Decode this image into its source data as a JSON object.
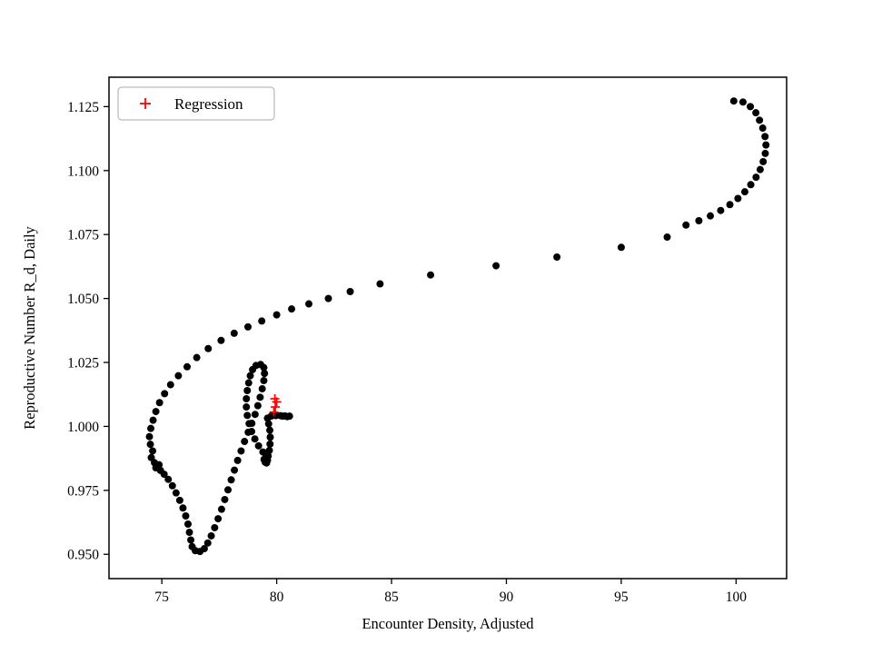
{
  "figure": {
    "background": "#ffffff"
  },
  "chart_data": {
    "type": "scatter",
    "title": "",
    "xlabel": "Encounter Density, Adjusted",
    "ylabel": "Reproductive Number R_d, Daily",
    "xlim": [
      72.7,
      102.2
    ],
    "ylim": [
      0.9405,
      1.1365
    ],
    "grid": false,
    "xticks": {
      "values": [
        75,
        80,
        85,
        90,
        95,
        100
      ],
      "labels": [
        "75",
        "80",
        "85",
        "90",
        "95",
        "100"
      ]
    },
    "yticks": {
      "values": [
        0.95,
        0.975,
        1.0,
        1.025,
        1.05,
        1.075,
        1.1,
        1.125
      ],
      "labels": [
        "0.950",
        "0.975",
        "1.000",
        "1.025",
        "1.050",
        "1.075",
        "1.100",
        "1.125"
      ]
    },
    "legend": {
      "position": "upper left",
      "entries": [
        {
          "label": "Regression",
          "marker": "plus",
          "color": "#ff0000"
        }
      ]
    },
    "series": [
      {
        "name": "trajectory",
        "marker": "circle",
        "color": "#000000",
        "size": 4,
        "points": [
          [
            99.9,
            1.1272
          ],
          [
            100.3,
            1.1268
          ],
          [
            100.62,
            1.125
          ],
          [
            100.86,
            1.1226
          ],
          [
            101.02,
            1.1197
          ],
          [
            101.16,
            1.1166
          ],
          [
            101.26,
            1.1133
          ],
          [
            101.3,
            1.11
          ],
          [
            101.27,
            1.1067
          ],
          [
            101.18,
            1.1035
          ],
          [
            101.05,
            1.1004
          ],
          [
            100.87,
            1.0974
          ],
          [
            100.64,
            1.0945
          ],
          [
            100.38,
            1.0917
          ],
          [
            100.08,
            1.0891
          ],
          [
            99.73,
            1.0867
          ],
          [
            99.33,
            1.0844
          ],
          [
            98.88,
            1.0823
          ],
          [
            98.38,
            1.0804
          ],
          [
            97.82,
            1.0787
          ],
          [
            97.0,
            1.074
          ],
          [
            95.0,
            1.07
          ],
          [
            92.2,
            1.0662
          ],
          [
            89.55,
            1.0628
          ],
          [
            86.7,
            1.0592
          ],
          [
            84.5,
            1.0557
          ],
          [
            83.2,
            1.0527
          ],
          [
            82.25,
            1.05
          ],
          [
            81.4,
            1.0479
          ],
          [
            80.65,
            1.0459
          ],
          [
            80.0,
            1.0436
          ],
          [
            79.35,
            1.0412
          ],
          [
            78.75,
            1.0389
          ],
          [
            78.15,
            1.0364
          ],
          [
            77.58,
            1.0336
          ],
          [
            77.02,
            1.0304
          ],
          [
            76.52,
            1.0269
          ],
          [
            76.1,
            1.0233
          ],
          [
            75.72,
            1.0198
          ],
          [
            75.38,
            1.0163
          ],
          [
            75.12,
            1.0128
          ],
          [
            74.9,
            1.0093
          ],
          [
            74.74,
            1.0058
          ],
          [
            74.62,
            1.0024
          ],
          [
            74.52,
            0.9992
          ],
          [
            74.46,
            0.996
          ],
          [
            74.5,
            0.993
          ],
          [
            74.6,
            0.9904
          ],
          [
            74.54,
            0.9878
          ],
          [
            74.68,
            0.9858
          ],
          [
            74.88,
            0.985
          ],
          [
            74.74,
            0.9838
          ],
          [
            74.94,
            0.9828
          ],
          [
            75.1,
            0.9813
          ],
          [
            75.28,
            0.9793
          ],
          [
            75.46,
            0.9768
          ],
          [
            75.62,
            0.974
          ],
          [
            75.78,
            0.9711
          ],
          [
            75.92,
            0.9681
          ],
          [
            76.04,
            0.965
          ],
          [
            76.14,
            0.9618
          ],
          [
            76.2,
            0.9586
          ],
          [
            76.26,
            0.9556
          ],
          [
            76.32,
            0.953
          ],
          [
            76.46,
            0.9514
          ],
          [
            76.66,
            0.9511
          ],
          [
            76.85,
            0.9522
          ],
          [
            77.0,
            0.9544
          ],
          [
            77.15,
            0.9572
          ],
          [
            77.3,
            0.9604
          ],
          [
            77.45,
            0.9639
          ],
          [
            77.6,
            0.9676
          ],
          [
            77.74,
            0.9714
          ],
          [
            77.88,
            0.9752
          ],
          [
            78.02,
            0.9791
          ],
          [
            78.16,
            0.9829
          ],
          [
            78.3,
            0.9867
          ],
          [
            78.45,
            0.9904
          ],
          [
            78.6,
            0.9941
          ],
          [
            78.76,
            0.9977
          ],
          [
            78.92,
            1.0012
          ],
          [
            79.06,
            1.0047
          ],
          [
            79.18,
            1.0081
          ],
          [
            79.28,
            1.0114
          ],
          [
            79.37,
            1.0147
          ],
          [
            79.44,
            1.0179
          ],
          [
            79.47,
            1.0207
          ],
          [
            79.44,
            1.023
          ],
          [
            79.3,
            1.0242
          ],
          [
            79.1,
            1.0238
          ],
          [
            78.95,
            1.0222
          ],
          [
            78.85,
            1.0198
          ],
          [
            78.78,
            1.017
          ],
          [
            78.72,
            1.014
          ],
          [
            78.68,
            1.0108
          ],
          [
            78.68,
            1.0076
          ],
          [
            78.72,
            1.0043
          ],
          [
            78.8,
            1.0011
          ],
          [
            78.91,
            0.998
          ],
          [
            79.05,
            0.9951
          ],
          [
            79.21,
            0.9924
          ],
          [
            79.4,
            0.99
          ],
          [
            79.54,
            0.9881
          ],
          [
            79.6,
            0.9868
          ],
          [
            79.5,
            0.986
          ],
          [
            79.45,
            0.9871
          ],
          [
            79.56,
            0.9857
          ],
          [
            79.63,
            0.9884
          ],
          [
            79.68,
            0.9906
          ],
          [
            79.71,
            0.9931
          ],
          [
            79.72,
            0.9958
          ],
          [
            79.7,
            0.9985
          ],
          [
            79.65,
            1.001
          ],
          [
            79.6,
            1.0032
          ],
          [
            79.76,
            1.004
          ],
          [
            79.96,
            1.0042
          ],
          [
            80.16,
            1.0042
          ],
          [
            80.36,
            1.0041
          ],
          [
            80.56,
            1.004
          ],
          [
            80.46,
            1.0038
          ],
          [
            80.26,
            1.004
          ]
        ]
      },
      {
        "name": "regression",
        "marker": "plus",
        "color": "#ff0000",
        "size": 5,
        "points": [
          [
            79.88,
            1.0056
          ],
          [
            79.94,
            1.0076
          ],
          [
            80.0,
            1.0096
          ],
          [
            79.92,
            1.0108
          ]
        ]
      }
    ]
  }
}
